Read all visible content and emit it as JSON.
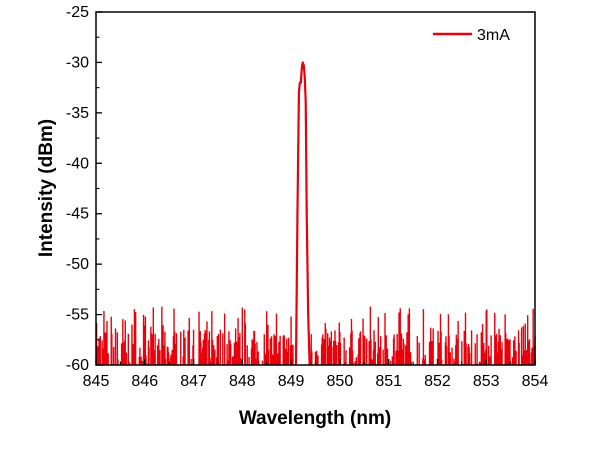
{
  "chart_data": {
    "type": "line",
    "title": "",
    "xlabel": "Wavelength (nm)",
    "ylabel": "Intensity (dBm)",
    "xlim": [
      845,
      854
    ],
    "ylim": [
      -60,
      -25
    ],
    "xticks": [
      "845",
      "846",
      "847",
      "848",
      "849",
      "850",
      "851",
      "852",
      "853",
      "854"
    ],
    "yticks": [
      "-25",
      "-30",
      "-35",
      "-40",
      "-45",
      "-50",
      "-55",
      "-60"
    ],
    "legend_position": "top-right",
    "grid": false,
    "series": [
      {
        "name": "3mA",
        "color": "#e8000b",
        "peak": {
          "x": [
            849.1,
            849.13,
            849.16,
            849.18,
            849.2,
            849.22,
            849.24,
            849.26,
            849.28,
            849.3,
            849.32,
            849.35,
            849.38
          ],
          "y": [
            -60,
            -45,
            -33,
            -32,
            -32,
            -30.5,
            -30,
            -30.3,
            -31.5,
            -34,
            -45,
            -55,
            -60
          ]
        }
      }
    ]
  }
}
